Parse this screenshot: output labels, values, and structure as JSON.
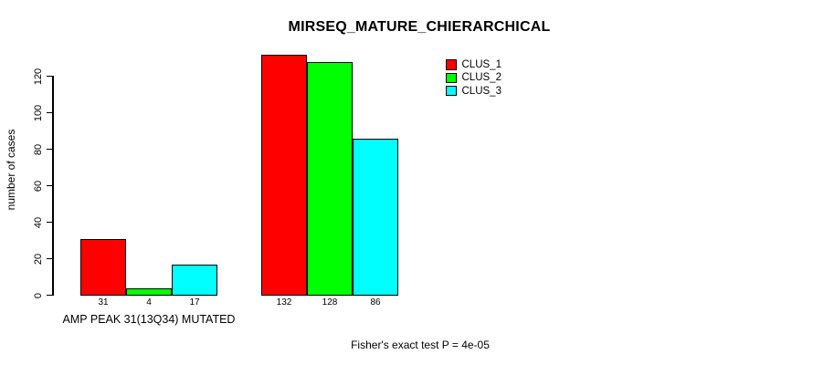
{
  "chart_data": {
    "type": "bar",
    "title": "MIRSEQ_MATURE_CHIERARCHICAL",
    "ylabel": "number of cases",
    "xlabel": "",
    "categories": [
      "AMP PEAK 31(13Q34) MUTATED",
      ""
    ],
    "series": [
      {
        "name": "CLUS_1",
        "color": "#ff0000",
        "values": [
          31,
          132
        ]
      },
      {
        "name": "CLUS_2",
        "color": "#00ff00",
        "values": [
          4,
          128
        ]
      },
      {
        "name": "CLUS_3",
        "color": "#00ffff",
        "values": [
          17,
          86
        ]
      }
    ],
    "yticks": [
      0,
      20,
      40,
      60,
      80,
      100,
      120
    ],
    "ylim": [
      0,
      132
    ],
    "grid": false,
    "legend_position": "top-right",
    "show_bar_value_labels": true,
    "annotation": "Fisher's exact test P = 4e-05"
  },
  "colors": {
    "background": "#ffffff",
    "text": "#000000",
    "bar_border": "#000000"
  }
}
